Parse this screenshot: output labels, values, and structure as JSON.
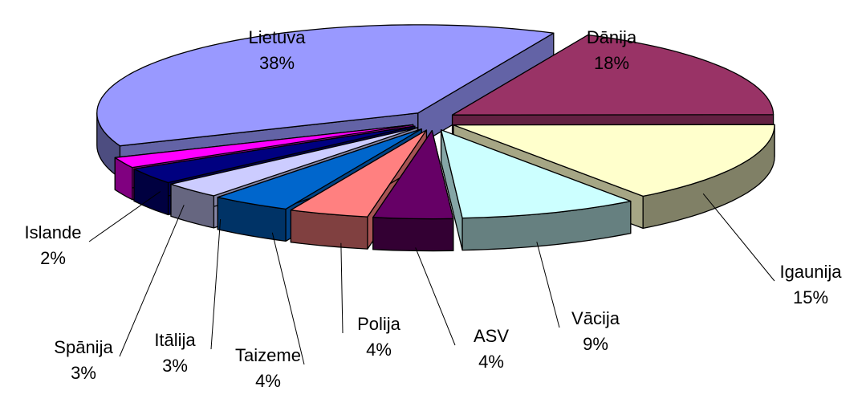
{
  "chart_data": {
    "type": "pie",
    "categories": [
      "Dānija",
      "Igaunija",
      "Vācija",
      "ASV",
      "Polija",
      "Taizeme",
      "Itālija",
      "Spānija",
      "Islande",
      "Lietuva"
    ],
    "values": [
      18,
      15,
      9,
      4,
      4,
      4,
      3,
      3,
      2,
      38
    ],
    "value_labels": [
      "18%",
      "15%",
      "9%",
      "4%",
      "4%",
      "4%",
      "3%",
      "3%",
      "2%",
      "38%"
    ],
    "colors": [
      "#993366",
      "#ffffcc",
      "#ccffff",
      "#660066",
      "#ff8080",
      "#0066cc",
      "#ccccff",
      "#000080",
      "#ff00ff",
      "#9999ff"
    ]
  }
}
